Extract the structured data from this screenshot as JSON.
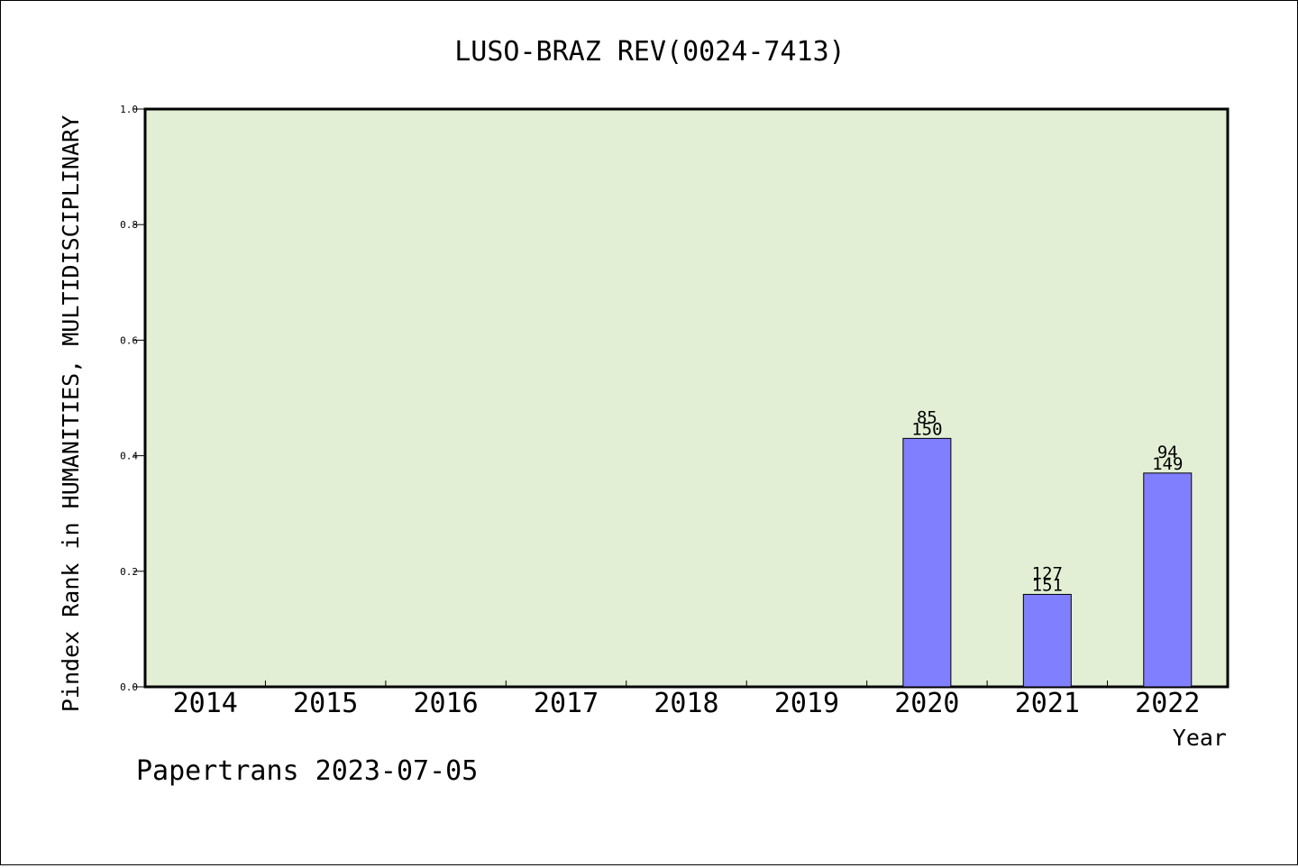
{
  "chart_data": {
    "type": "bar",
    "title": "LUSO-BRAZ REV(0024-7413)",
    "xlabel": "Year",
    "ylabel": "Pindex Rank in HUMANITIES, MULTIDISCIPLINARY",
    "footer": "Papertrans 2023-07-05",
    "categories": [
      "2014",
      "2015",
      "2016",
      "2017",
      "2018",
      "2019",
      "2020",
      "2021",
      "2022"
    ],
    "ylim": [
      0,
      1.0
    ],
    "yticks": [
      "0.0",
      "0.2",
      "0.4",
      "0.6",
      "0.8",
      "1.0"
    ],
    "bars": [
      {
        "year": "2020",
        "value": 0.43,
        "rank": "85",
        "total": "150"
      },
      {
        "year": "2021",
        "value": 0.16,
        "rank": "127",
        "total": "151"
      },
      {
        "year": "2022",
        "value": 0.37,
        "rank": "94",
        "total": "149"
      }
    ],
    "colors": {
      "plot_background": "#e2efd4",
      "bar_fill": "#8080ff",
      "bar_stroke": "#000000"
    },
    "grid": false,
    "legend": "none"
  }
}
